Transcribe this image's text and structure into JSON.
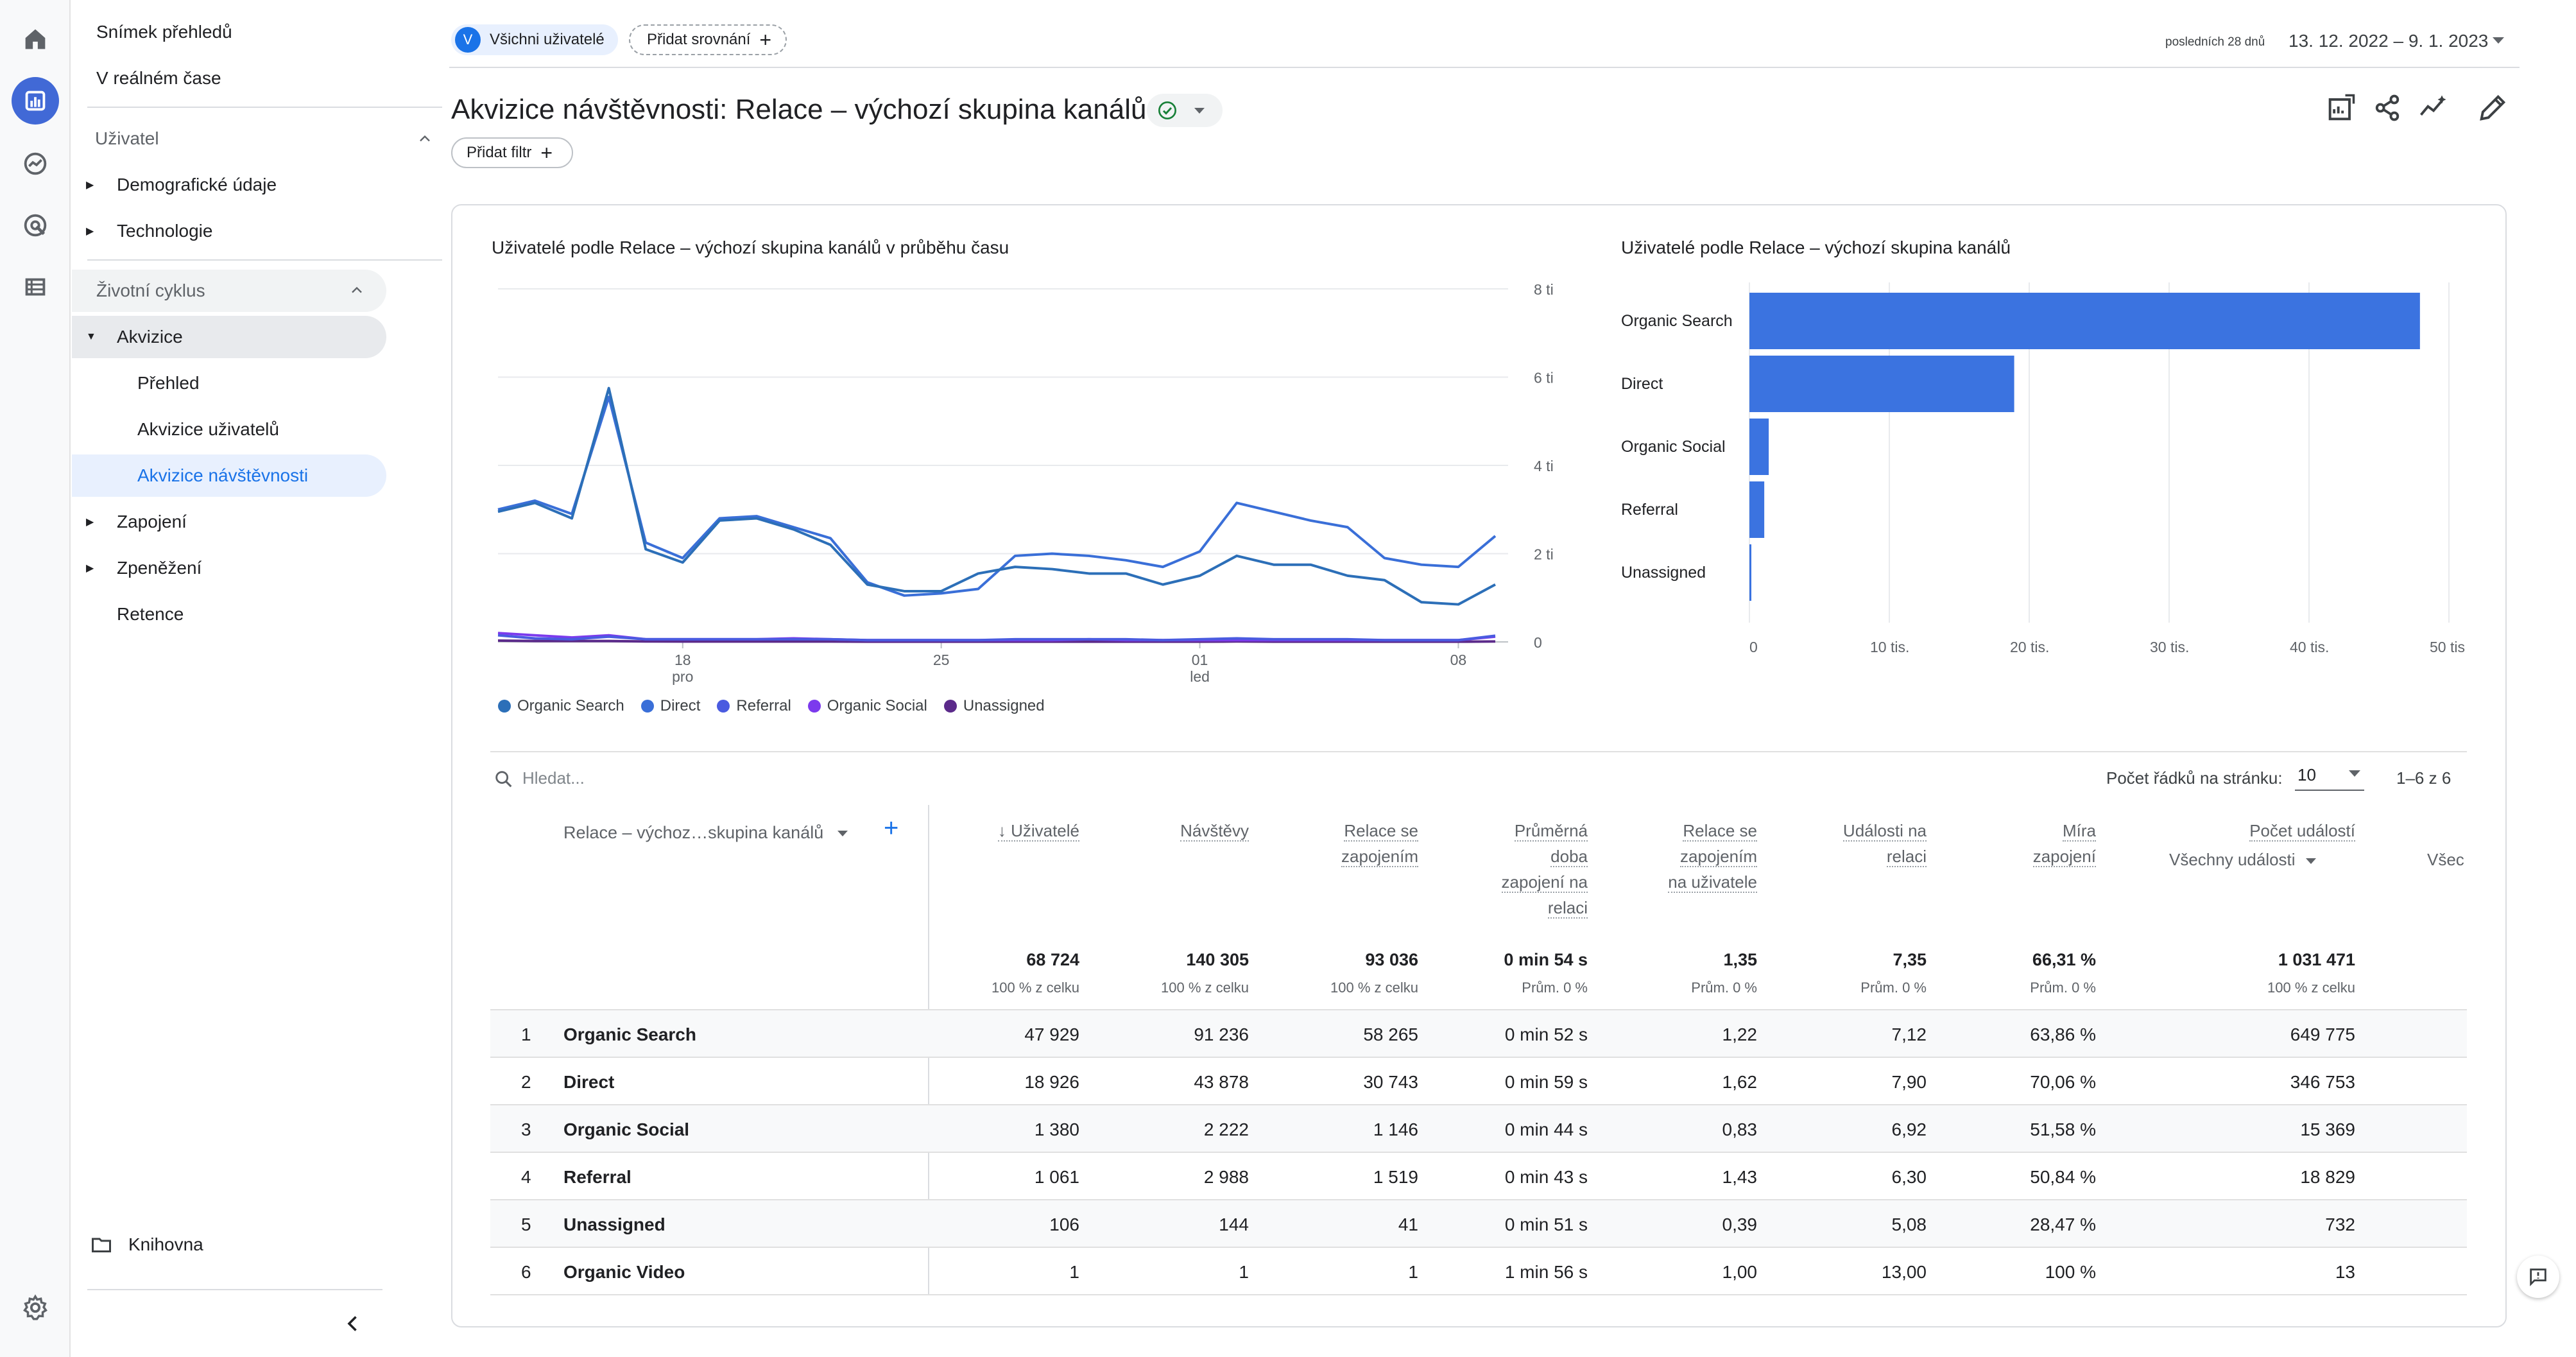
{
  "nav": {
    "snapshot": "Snímek přehledů",
    "realtime": "V reálném čase",
    "user_section": "Uživatel",
    "demographics": "Demografické údaje",
    "technology": "Technologie",
    "lifecycle_section": "Životní cyklus",
    "acquisition": "Akvizice",
    "overview": "Přehled",
    "user_acquisition": "Akvizice uživatelů",
    "traffic_acquisition": "Akvizice návštěvnosti",
    "engagement": "Zapojení",
    "monetization": "Zpeněžení",
    "retention": "Retence",
    "library": "Knihovna"
  },
  "header": {
    "segment_initial": "V",
    "segment_label": "Všichni uživatelé",
    "add_comparison": "Přidat srovnání",
    "date_prefix": "posledních 28 dnů",
    "date_range": "13. 12. 2022 – 9. 1. 2023",
    "title": "Akvizice návštěvnosti: Relace – výchozí skupina kanálů",
    "add_filter": "Přidat filtr"
  },
  "colors": {
    "accent": "#1a73e8",
    "series": [
      "#2c6fb8",
      "#3a6fd8",
      "#4a5be0",
      "#7c3aed",
      "#5b2a8a"
    ],
    "bar": "#3b73e0"
  },
  "chart_line": {
    "title": "Uživatelé podle Relace – výchozí skupina kanálů v průběhu času",
    "y_ticks": [
      "8 tis.",
      "6 tis.",
      "4 tis.",
      "2 tis.",
      "0"
    ],
    "x_ticks": [
      {
        "label": "18",
        "sub": "pro"
      },
      {
        "label": "25",
        "sub": ""
      },
      {
        "label": "01",
        "sub": "led"
      },
      {
        "label": "08",
        "sub": ""
      }
    ],
    "legend": [
      "Organic Search",
      "Direct",
      "Referral",
      "Organic Social",
      "Unassigned"
    ]
  },
  "chart_bar": {
    "title": "Uživatelé podle Relace – výchozí skupina kanálů",
    "x_ticks": [
      "0",
      "10 tis.",
      "20 tis.",
      "30 tis.",
      "40 tis.",
      "50 tis"
    ]
  },
  "chart_data": [
    {
      "type": "line",
      "title": "Uživatelé podle Relace – výchozí skupina kanálů v průběhu času",
      "x": [
        "13.12",
        "14.12",
        "15.12",
        "16.12",
        "17.12",
        "18.12",
        "19.12",
        "20.12",
        "21.12",
        "22.12",
        "23.12",
        "24.12",
        "25.12",
        "26.12",
        "27.12",
        "28.12",
        "29.12",
        "30.12",
        "31.12",
        "1.1",
        "2.1",
        "3.1",
        "4.1",
        "5.1",
        "6.1",
        "7.1",
        "8.1",
        "9.1"
      ],
      "ylim": [
        0,
        8000
      ],
      "series": [
        {
          "name": "Organic Search",
          "values": [
            2950,
            3150,
            2800,
            5750,
            2100,
            1800,
            2750,
            2800,
            2550,
            2200,
            1300,
            1150,
            1150,
            1550,
            1700,
            1650,
            1550,
            1550,
            1300,
            1500,
            1950,
            1750,
            1750,
            1500,
            1400,
            900,
            850,
            1300
          ]
        },
        {
          "name": "Direct",
          "values": [
            3000,
            3200,
            2900,
            5550,
            2250,
            1900,
            2800,
            2850,
            2600,
            2350,
            1350,
            1050,
            1100,
            1200,
            1950,
            2000,
            1950,
            1850,
            1700,
            2050,
            3150,
            2950,
            2750,
            2600,
            1900,
            1750,
            1700,
            2400
          ]
        },
        {
          "name": "Referral",
          "values": [
            150,
            80,
            60,
            120,
            60,
            60,
            60,
            60,
            60,
            60,
            40,
            40,
            40,
            40,
            60,
            60,
            60,
            60,
            40,
            60,
            80,
            60,
            60,
            60,
            40,
            40,
            40,
            140
          ]
        },
        {
          "name": "Organic Social",
          "values": [
            200,
            150,
            100,
            150,
            60,
            60,
            60,
            60,
            80,
            60,
            40,
            40,
            40,
            40,
            40,
            40,
            60,
            40,
            40,
            40,
            40,
            40,
            40,
            40,
            40,
            40,
            40,
            120
          ]
        },
        {
          "name": "Unassigned",
          "values": [
            30,
            20,
            20,
            20,
            10,
            10,
            10,
            10,
            10,
            10,
            5,
            5,
            5,
            5,
            5,
            5,
            5,
            5,
            5,
            5,
            10,
            5,
            5,
            5,
            5,
            5,
            5,
            10
          ]
        }
      ]
    },
    {
      "type": "bar",
      "title": "Uživatelé podle Relace – výchozí skupina kanálů",
      "categories": [
        "Organic Search",
        "Direct",
        "Organic Social",
        "Referral",
        "Unassigned"
      ],
      "values": [
        47929,
        18926,
        1380,
        1061,
        106
      ],
      "xlim": [
        0,
        50000
      ]
    }
  ],
  "table": {
    "search_placeholder": "Hledat...",
    "rows_label": "Počet řádků na stránku:",
    "rows_value": "10",
    "pager": "1–6 z 6",
    "dim_header": "Relace – výchoz…skupina kanálů",
    "columns": [
      {
        "lines": [
          "↓ Uživatelé"
        ],
        "total": "68 724",
        "sub": "100 % z celku"
      },
      {
        "lines": [
          "Návštěvy"
        ],
        "total": "140 305",
        "sub": "100 % z celku"
      },
      {
        "lines": [
          "Relace se",
          "zapojením"
        ],
        "total": "93 036",
        "sub": "100 % z celku"
      },
      {
        "lines": [
          "Průměrná",
          "doba",
          "zapojení na",
          "relaci"
        ],
        "total": "0 min 54 s",
        "sub": "Prům. 0 %"
      },
      {
        "lines": [
          "Relace se",
          "zapojením",
          "na uživatele"
        ],
        "total": "1,35",
        "sub": "Prům. 0 %"
      },
      {
        "lines": [
          "Události na",
          "relaci"
        ],
        "total": "7,35",
        "sub": "Prům. 0 %"
      },
      {
        "lines": [
          "Míra",
          "zapojení"
        ],
        "total": "66,31 %",
        "sub": "Prům. 0 %"
      },
      {
        "lines": [
          "Počet událostí"
        ],
        "total": "1 031 471",
        "sub": "100 % z celku"
      }
    ],
    "events_dropdown": "Všechny události",
    "cut_header": "Všec",
    "rows": [
      {
        "idx": "1",
        "name": "Organic Search",
        "vals": [
          "47 929",
          "91 236",
          "58 265",
          "0 min 52 s",
          "1,22",
          "7,12",
          "63,86 %",
          "649 775"
        ]
      },
      {
        "idx": "2",
        "name": "Direct",
        "vals": [
          "18 926",
          "43 878",
          "30 743",
          "0 min 59 s",
          "1,62",
          "7,90",
          "70,06 %",
          "346 753"
        ]
      },
      {
        "idx": "3",
        "name": "Organic Social",
        "vals": [
          "1 380",
          "2 222",
          "1 146",
          "0 min 44 s",
          "0,83",
          "6,92",
          "51,58 %",
          "15 369"
        ]
      },
      {
        "idx": "4",
        "name": "Referral",
        "vals": [
          "1 061",
          "2 988",
          "1 519",
          "0 min 43 s",
          "1,43",
          "6,30",
          "50,84 %",
          "18 829"
        ]
      },
      {
        "idx": "5",
        "name": "Unassigned",
        "vals": [
          "106",
          "144",
          "41",
          "0 min 51 s",
          "0,39",
          "5,08",
          "28,47 %",
          "732"
        ]
      },
      {
        "idx": "6",
        "name": "Organic Video",
        "vals": [
          "1",
          "1",
          "1",
          "1 min 56 s",
          "1,00",
          "13,00",
          "100 %",
          "13"
        ]
      }
    ]
  }
}
